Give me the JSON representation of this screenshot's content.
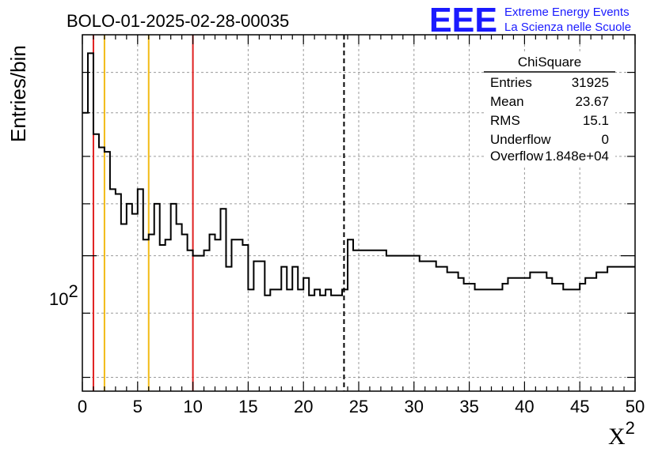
{
  "logo": {
    "letters": "EEE",
    "line1": "Extreme Energy Events",
    "line2": "La Scienza nelle Scuole",
    "color": "#1a1aff"
  },
  "stats_box": {
    "title": "ChiSquare",
    "rows": [
      {
        "label": "Entries",
        "value": "31925"
      },
      {
        "label": "Mean",
        "value": "23.67"
      },
      {
        "label": "RMS",
        "value": "15.1"
      },
      {
        "label": "Underflow",
        "value": "0"
      },
      {
        "label": "Overflow",
        "value": "1.848e+04"
      }
    ]
  },
  "chart_data": {
    "type": "histogram",
    "title": "BOLO-01-2025-02-28-00035",
    "xlabel": "X",
    "xlabel_sup": "2",
    "ylabel": "Entries/bin",
    "xlim": [
      0,
      50
    ],
    "ylim": [
      78,
      150
    ],
    "yscale": "log",
    "grid": true,
    "x_ticks": [
      0,
      5,
      10,
      15,
      20,
      25,
      30,
      35,
      40,
      45,
      50
    ],
    "y_tick_label": {
      "base": "10",
      "exp": "2",
      "value": 100
    },
    "bin_width": 0.5,
    "bin_values": [
      130,
      145,
      125,
      122,
      121,
      113,
      112,
      106,
      110,
      108,
      113,
      103,
      104,
      110,
      102,
      103,
      110,
      106,
      104,
      101,
      100,
      100,
      101,
      104,
      103,
      109,
      98,
      103,
      103,
      102,
      94,
      99,
      99,
      93,
      94,
      94,
      98,
      94,
      98,
      94,
      96,
      93,
      94,
      93,
      94,
      93,
      93,
      94,
      103,
      101,
      101,
      101,
      101,
      101,
      101,
      100,
      100,
      100,
      100,
      100,
      100,
      99,
      99,
      99,
      98,
      98,
      97,
      97,
      96,
      95,
      95,
      94,
      94,
      94,
      94,
      94,
      95,
      96,
      96,
      96,
      96,
      97,
      97,
      97,
      96,
      95,
      95,
      94,
      94,
      94,
      95,
      96,
      96,
      97,
      97,
      98,
      98,
      98,
      98,
      98
    ],
    "vertical_lines": [
      {
        "x": 1,
        "color": "#e02020",
        "style": "solid"
      },
      {
        "x": 2,
        "color": "#f2bb16",
        "style": "solid"
      },
      {
        "x": 6,
        "color": "#f2bb16",
        "style": "solid"
      },
      {
        "x": 10,
        "color": "#e02020",
        "style": "solid"
      },
      {
        "x": 23.67,
        "color": "#000000",
        "style": "dashed"
      }
    ]
  }
}
